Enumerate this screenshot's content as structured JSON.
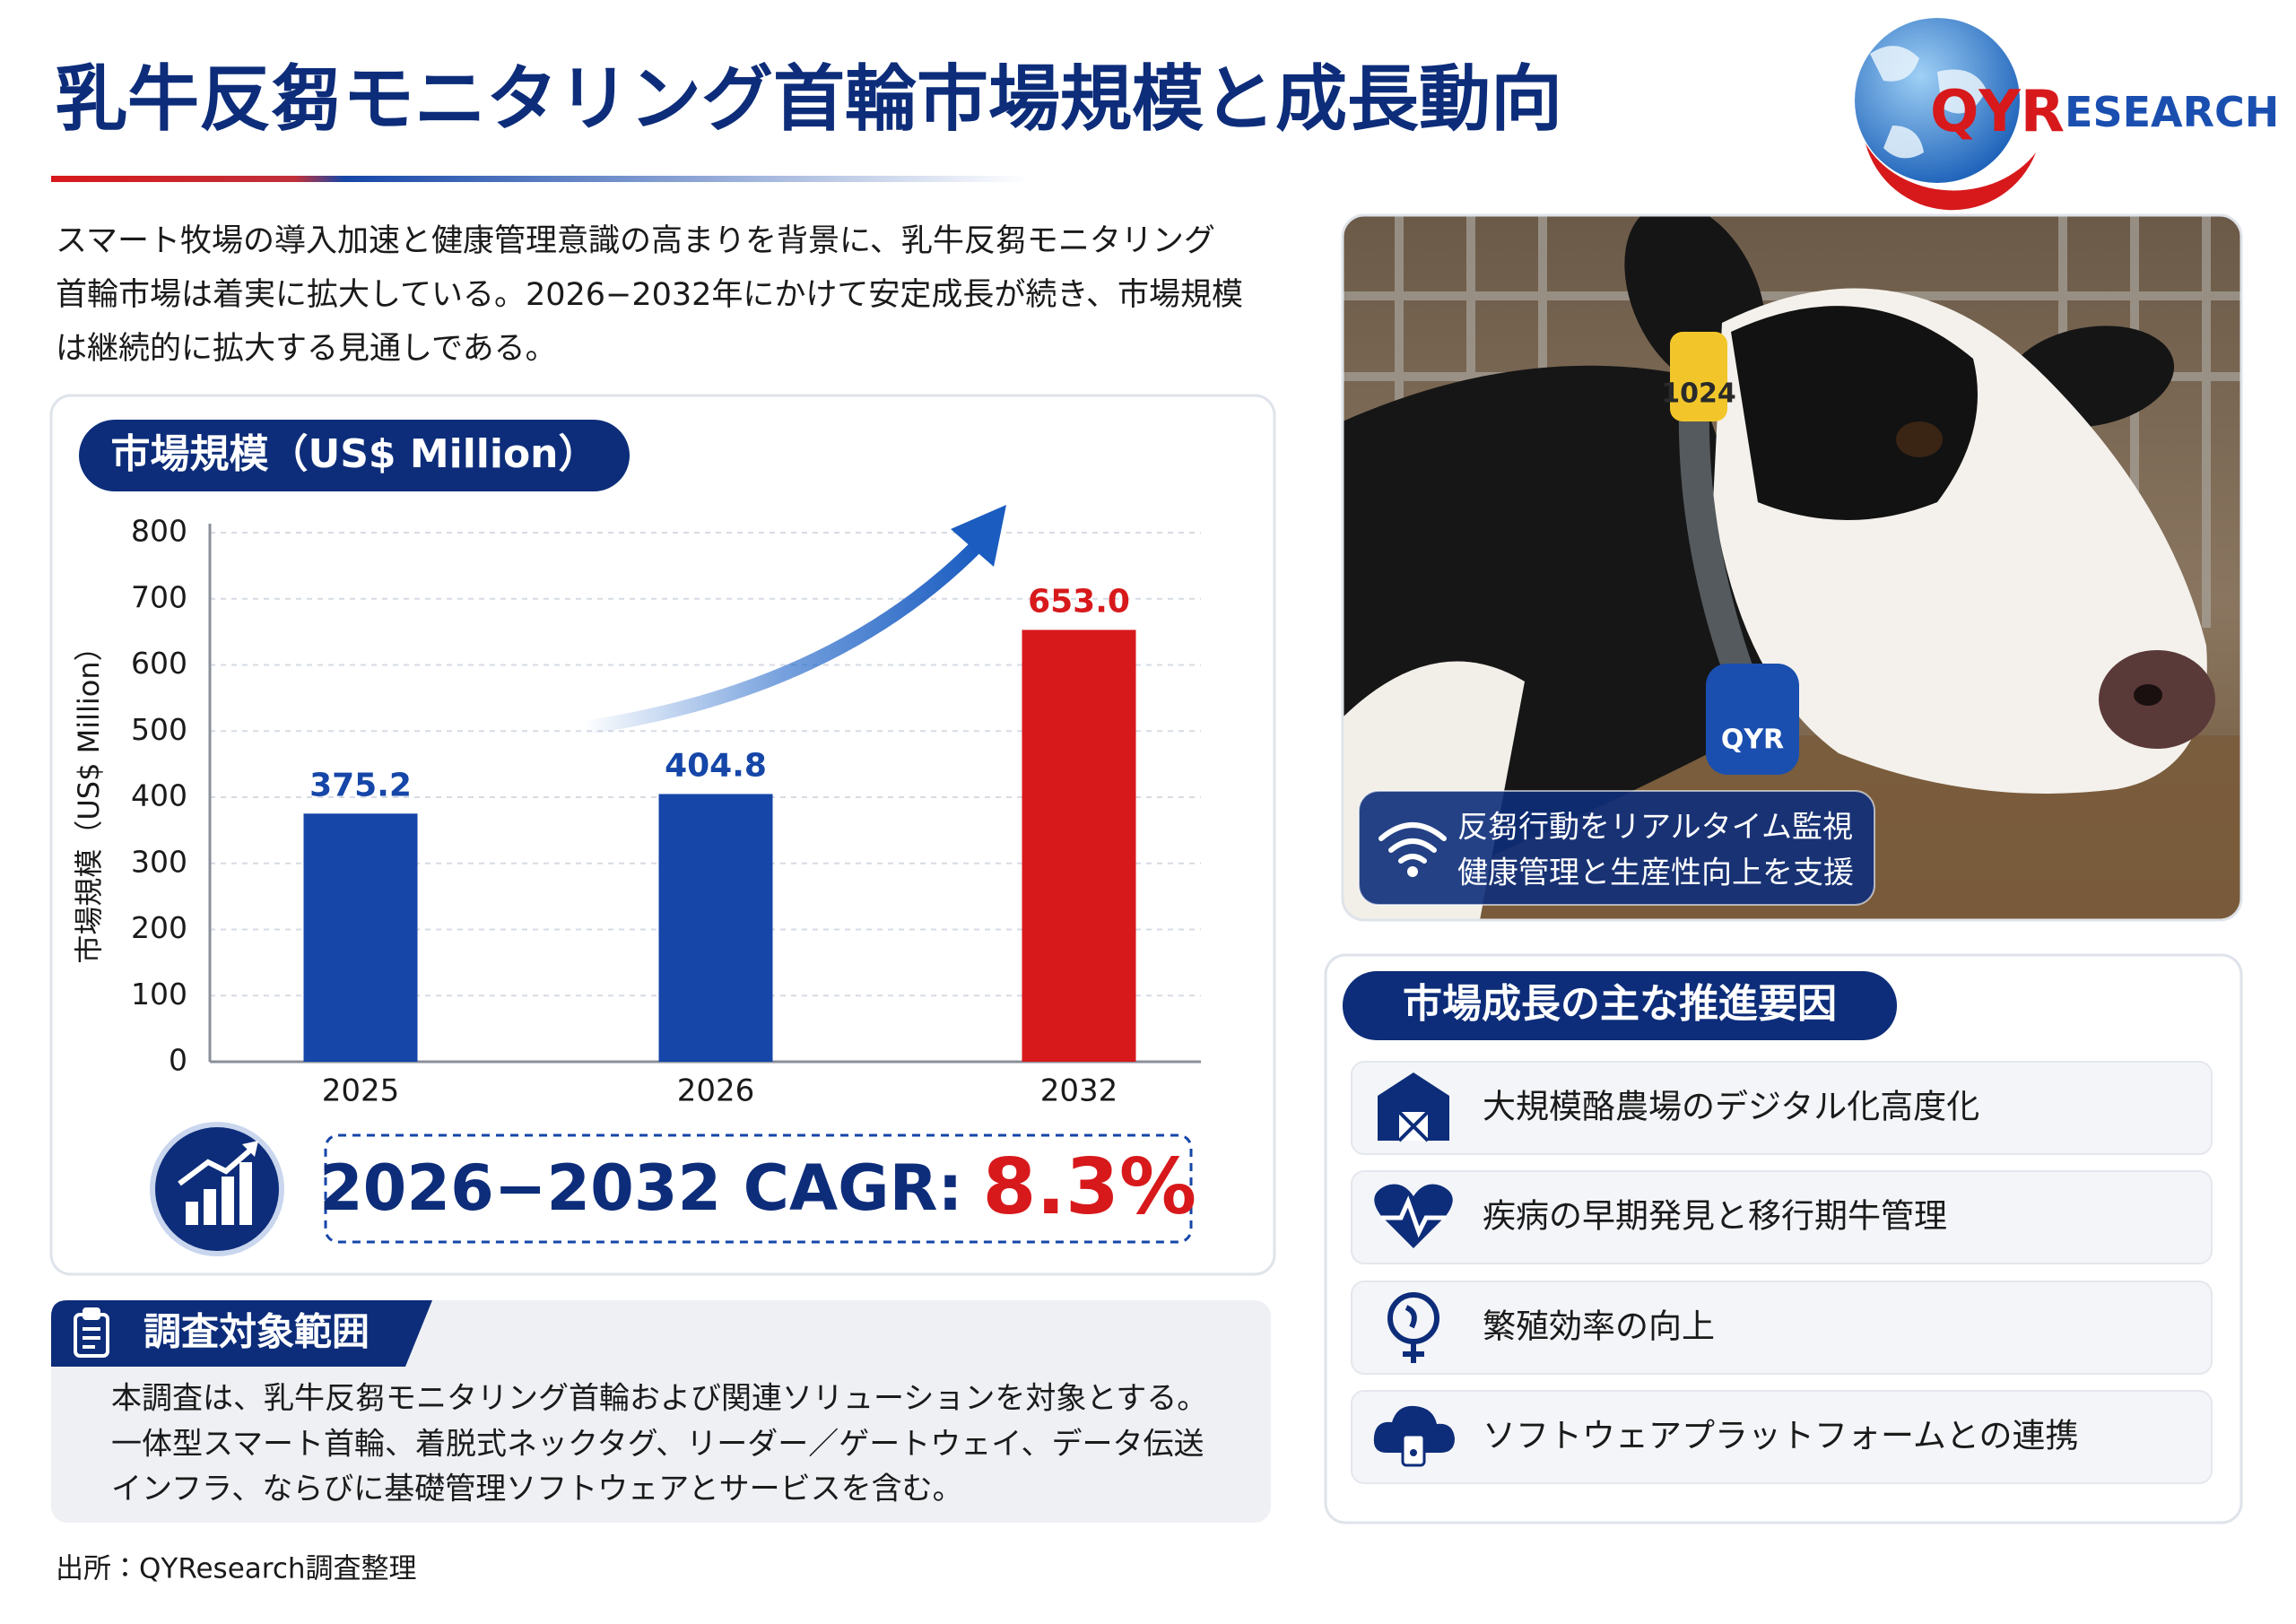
{
  "header": {
    "title": "乳牛反芻モニタリング首輪市場規模と成長動向",
    "logo_mark": "QYR",
    "logo_rest": "ESEARCH"
  },
  "intro": {
    "lines": [
      "スマート牧場の導入加速と健康管理意識の高まりを背景に、乳牛反芻モニタリング",
      "首輪市場は着実に拡大している。2026−2032年にかけて安定成長が続き、市場規模",
      "は継続的に拡大する見通しである。"
    ]
  },
  "chart_data": {
    "type": "bar",
    "title": "市場規模（US$ Million）",
    "y_label": "市場規模（US$ Million）",
    "categories": [
      "2025",
      "2026",
      "2032"
    ],
    "values": [
      375.2,
      404.8,
      653.0
    ],
    "value_labels": [
      "375.2",
      "404.8",
      "653.0"
    ],
    "colors": [
      "#1546a8",
      "#1546a8",
      "#d7191c"
    ],
    "ylim": [
      0,
      800
    ],
    "yticks": [
      0,
      100,
      200,
      300,
      400,
      500,
      600,
      700,
      800
    ],
    "grid": true,
    "annotations": [
      "2026−2032 CAGR:",
      "8.3%"
    ]
  },
  "scope": {
    "title": "調査対象範囲",
    "lines": [
      "本調査は、乳牛反芻モニタリング首輪および関連ソリューションを対象とする。",
      "一体型スマート首輪、着脱式ネックタグ、リーダー／ゲートウェイ、データ伝送",
      "インフラ、ならびに基礎管理ソフトウェアとサービスを含む。"
    ]
  },
  "photo": {
    "ear_tag": "1024",
    "device": "QYR",
    "caption": [
      "反芻行動をリアルタイム監視",
      "健康管理と生産性向上を支援"
    ]
  },
  "drivers": {
    "title": "市場成長の主な推進要因",
    "items": [
      "大規模酪農場のデジタル化高度化",
      "疾病の早期発見と移行期牛管理",
      "繁殖効率の向上",
      "ソフトウェアプラットフォームとの連携"
    ]
  },
  "source": "出所：QYResearch調査整理"
}
